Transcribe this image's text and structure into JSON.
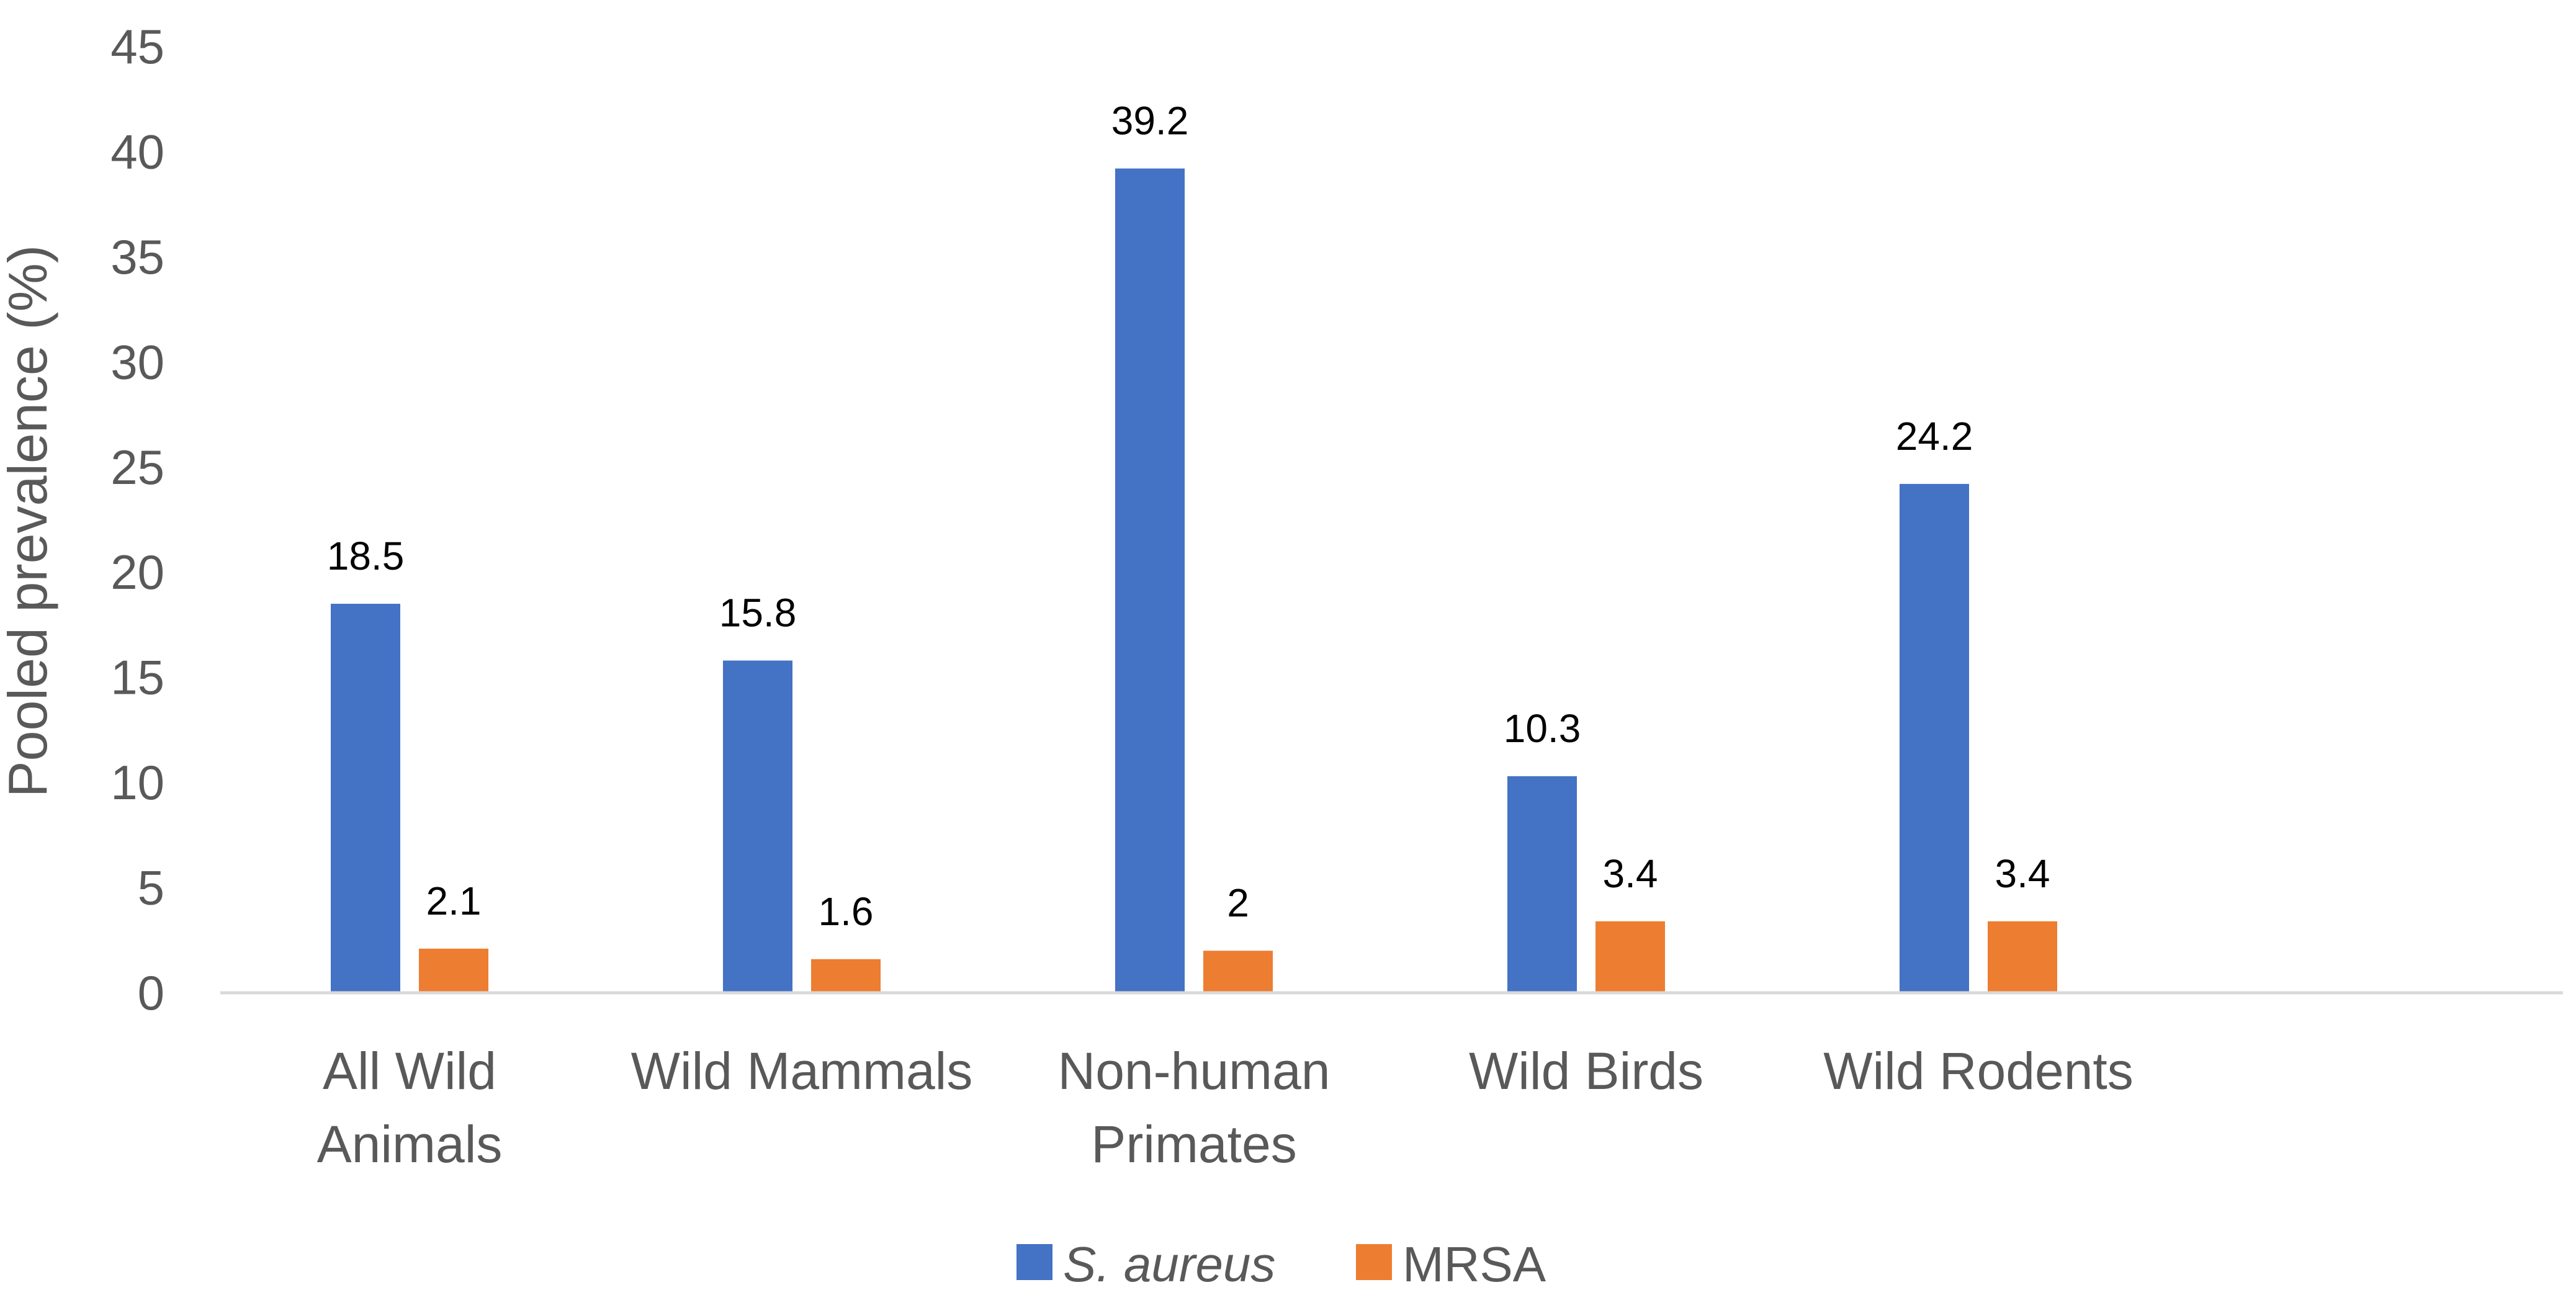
{
  "chart_data": {
    "type": "bar",
    "title": "",
    "xlabel": "",
    "ylabel": "Pooled prevalence (%)",
    "ylim": [
      0,
      45
    ],
    "yticks": [
      0,
      5,
      10,
      15,
      20,
      25,
      30,
      35,
      40,
      45
    ],
    "ytick_labels": [
      "0",
      "5",
      "10",
      "15",
      "20",
      "25",
      "30",
      "35",
      "40",
      "45"
    ],
    "grid": false,
    "legend_position": "bottom",
    "categories": [
      [
        "All Wild",
        "Animals"
      ],
      [
        "Wild Mammals"
      ],
      [
        "Non-human",
        "Primates"
      ],
      [
        "Wild Birds"
      ],
      [
        "Wild Rodents"
      ]
    ],
    "series": [
      {
        "name": "S. aureus",
        "italic": true,
        "color": "#4472C4",
        "values": [
          18.5,
          15.8,
          39.2,
          10.3,
          24.2
        ],
        "labels": [
          "18.5",
          "15.8",
          "39.2",
          "10.3",
          "24.2"
        ]
      },
      {
        "name": "MRSA",
        "italic": false,
        "color": "#ED7D31",
        "values": [
          2.1,
          1.6,
          2,
          3.4,
          3.4
        ],
        "labels": [
          "2.1",
          "1.6",
          "2",
          "3.4",
          "3.4"
        ]
      }
    ]
  }
}
